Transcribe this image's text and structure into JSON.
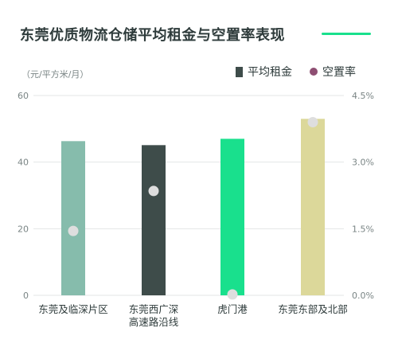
{
  "header": {
    "title": "东莞优质物流仓储平均租金与空置率表现"
  },
  "colors": {
    "accent_line": "#19e08d",
    "grid": "#e3e6e6",
    "rent_legend": "#3e4c4a",
    "vacancy_legend": "#8e4e72",
    "dot": "#dedede"
  },
  "chart_data": {
    "type": "bar",
    "unit_label": "（元/平方米/月）",
    "categories": [
      [
        "东莞及临深片区"
      ],
      [
        "东莞西广深",
        "高速路沿线"
      ],
      [
        "虎门港"
      ],
      [
        "东莞东部及北部"
      ]
    ],
    "bar_colors": [
      "#86bcac",
      "#3e4c4a",
      "#19e08d",
      "#dcd89a"
    ],
    "series": [
      {
        "name": "平均租金",
        "axis": "left",
        "type": "bar",
        "values": [
          46.3,
          45.1,
          47.0,
          53.0
        ]
      },
      {
        "name": "空置率",
        "axis": "right",
        "type": "scatter",
        "values": [
          1.45,
          2.35,
          0.02,
          3.9
        ]
      }
    ],
    "y_left": {
      "range": [
        0,
        60
      ],
      "ticks": [
        "0",
        "20",
        "40",
        "60"
      ],
      "tick_values": [
        0,
        20,
        40,
        60
      ]
    },
    "y_right": {
      "range": [
        0,
        4.5
      ],
      "ticks": [
        "0.0%",
        "1.5%",
        "3.0%",
        "4.5%"
      ],
      "tick_values": [
        0,
        1.5,
        3.0,
        4.5
      ]
    },
    "grid": true,
    "legend_position": "top-right"
  }
}
